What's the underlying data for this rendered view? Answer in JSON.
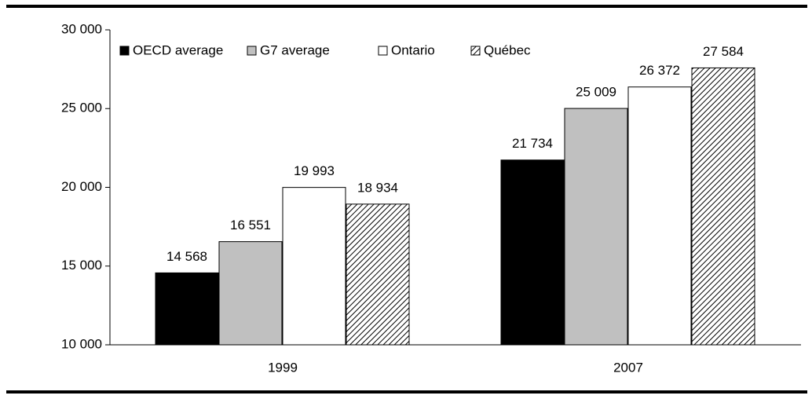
{
  "chart_data": {
    "type": "bar",
    "categories": [
      "1999",
      "2007"
    ],
    "series": [
      {
        "name": "OECD average",
        "color": "#000000",
        "values": [
          14568,
          21734
        ],
        "value_labels": [
          "14 568",
          "21 734"
        ]
      },
      {
        "name": "G7 average",
        "color": "#c0c0c0",
        "values": [
          16551,
          25009
        ],
        "value_labels": [
          "16 551",
          "25 009"
        ]
      },
      {
        "name": "Ontario",
        "color": "#ffffff",
        "values": [
          19993,
          26372
        ],
        "value_labels": [
          "19 993",
          "26 372"
        ]
      },
      {
        "name": "Québec",
        "color": "#000000",
        "hatch": true,
        "values": [
          18934,
          27584
        ],
        "value_labels": [
          "18 934",
          "27 584"
        ]
      }
    ],
    "ylim": [
      10000,
      30000
    ],
    "yticks": [
      {
        "value": 10000,
        "label": "10 000"
      },
      {
        "value": 15000,
        "label": "15 000"
      },
      {
        "value": 20000,
        "label": "20 000"
      },
      {
        "value": 25000,
        "label": "25 000"
      },
      {
        "value": 30000,
        "label": "30 000"
      }
    ],
    "legend": "top-left"
  }
}
